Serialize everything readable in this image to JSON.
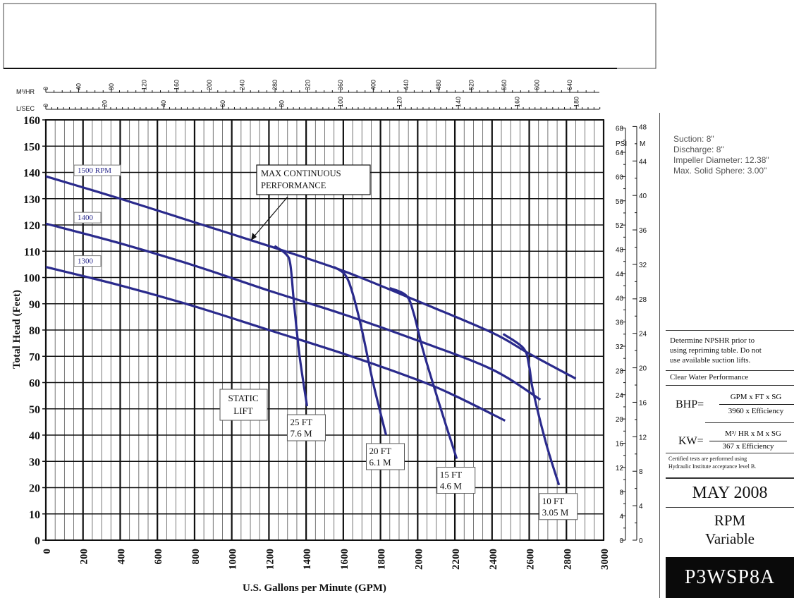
{
  "chart_data": {
    "type": "line",
    "xlabel": "U.S. Gallons per Minute (GPM)",
    "ylabel": "Total Head (Feet)",
    "xlim": [
      0,
      3000
    ],
    "ylim": [
      0,
      160
    ],
    "x_ticks": [
      "0",
      "200",
      "400",
      "600",
      "800",
      "1000",
      "1200",
      "1400",
      "1600",
      "1800",
      "2000",
      "2200",
      "2400",
      "2600",
      "2800",
      "3000"
    ],
    "y_ticks": [
      "0",
      "10",
      "20",
      "30",
      "40",
      "50",
      "60",
      "70",
      "80",
      "90",
      "100",
      "110",
      "120",
      "130",
      "140",
      "150",
      "160"
    ],
    "m3hr_label": "M³/HR",
    "m3hr_ticks": [
      "0",
      "40",
      "80",
      "120",
      "160",
      "200",
      "240",
      "280",
      "320",
      "360",
      "400",
      "440",
      "480",
      "520",
      "560",
      "600",
      "640"
    ],
    "lsec_label": "L/SEC",
    "lsec_ticks": [
      "0",
      "20",
      "40",
      "60",
      "80",
      "100",
      "120",
      "140",
      "160",
      "180"
    ],
    "psi_label": "PSI",
    "psi_ticks": [
      "0",
      "4",
      "8",
      "12",
      "16",
      "20",
      "24",
      "28",
      "32",
      "36",
      "40",
      "44",
      "48",
      "52",
      "56",
      "60",
      "64",
      "68"
    ],
    "m_label": "M",
    "m_ticks": [
      "0",
      "4",
      "8",
      "12",
      "16",
      "20",
      "24",
      "28",
      "32",
      "36",
      "40",
      "44",
      "48"
    ],
    "grid": true,
    "series": [
      {
        "name": "1500 RPM",
        "x": [
          0,
          400,
          800,
          1200,
          1600,
          2000,
          2400,
          2600,
          2850
        ],
        "y": [
          138.5,
          130,
          121,
          112,
          102.5,
          91,
          79,
          71,
          61.5
        ]
      },
      {
        "name": "1400",
        "x": [
          0,
          400,
          800,
          1200,
          1600,
          2000,
          2400,
          2660
        ],
        "y": [
          120.5,
          113,
          104.5,
          95,
          86,
          76,
          65,
          53.5
        ]
      },
      {
        "name": "1300",
        "x": [
          0,
          400,
          800,
          1200,
          1600,
          2000,
          2200,
          2470
        ],
        "y": [
          104,
          97,
          89,
          80,
          71,
          61,
          55,
          45.5
        ]
      }
    ],
    "static_lift_curves": [
      {
        "label": [
          "25 FT",
          "7.6 M"
        ],
        "x": [
          1230,
          1290,
          1315,
          1335,
          1365,
          1405
        ],
        "y": [
          112,
          109,
          105,
          90,
          70,
          51
        ]
      },
      {
        "label": [
          "20 FT",
          "6.1 M"
        ],
        "x": [
          1550,
          1610,
          1650,
          1700,
          1760,
          1830
        ],
        "y": [
          104,
          101,
          94,
          80,
          60,
          40
        ]
      },
      {
        "label": [
          "15 FT",
          "4.6 M"
        ],
        "x": [
          1850,
          1940,
          1980,
          2030,
          2120,
          2210
        ],
        "y": [
          96,
          93,
          86,
          72,
          51,
          31
        ]
      },
      {
        "label": [
          "10 FT",
          "3.05 M"
        ],
        "x": [
          2460,
          2570,
          2600,
          2620,
          2690,
          2760
        ],
        "y": [
          78.5,
          73,
          66,
          57,
          37,
          21
        ]
      }
    ],
    "annotations": {
      "max_continuous": [
        "MAX CONTINUOUS",
        "PERFORMANCE"
      ],
      "static_lift": [
        "STATIC",
        "LIFT"
      ]
    }
  },
  "specs": {
    "suction": "Suction: 8\"",
    "discharge": "Discharge: 8\"",
    "impeller": "Impeller Diameter: 12.38\"",
    "solid": "Max. Solid Sphere: 3.00\""
  },
  "note": {
    "line1": "Determine NPSHR prior to",
    "line2": "using repriming table. Do not",
    "line3": "use available suction lifts."
  },
  "clear_water": "Clear Water Performance",
  "bhp": {
    "label": "BHP=",
    "num": "GPM x FT x SG",
    "den": "3960 x Efficiency"
  },
  "kw": {
    "label": "KW=",
    "num": "M³/ HR x M x SG",
    "den": "367 x Efficiency"
  },
  "certified": {
    "line1": "Certified tests are performed using",
    "line2": "Hydraulic Institute acceptance level B."
  },
  "date": "MAY 2008",
  "rpm": {
    "line1": "RPM",
    "line2": "Variable"
  },
  "model": "P3WSP8A"
}
